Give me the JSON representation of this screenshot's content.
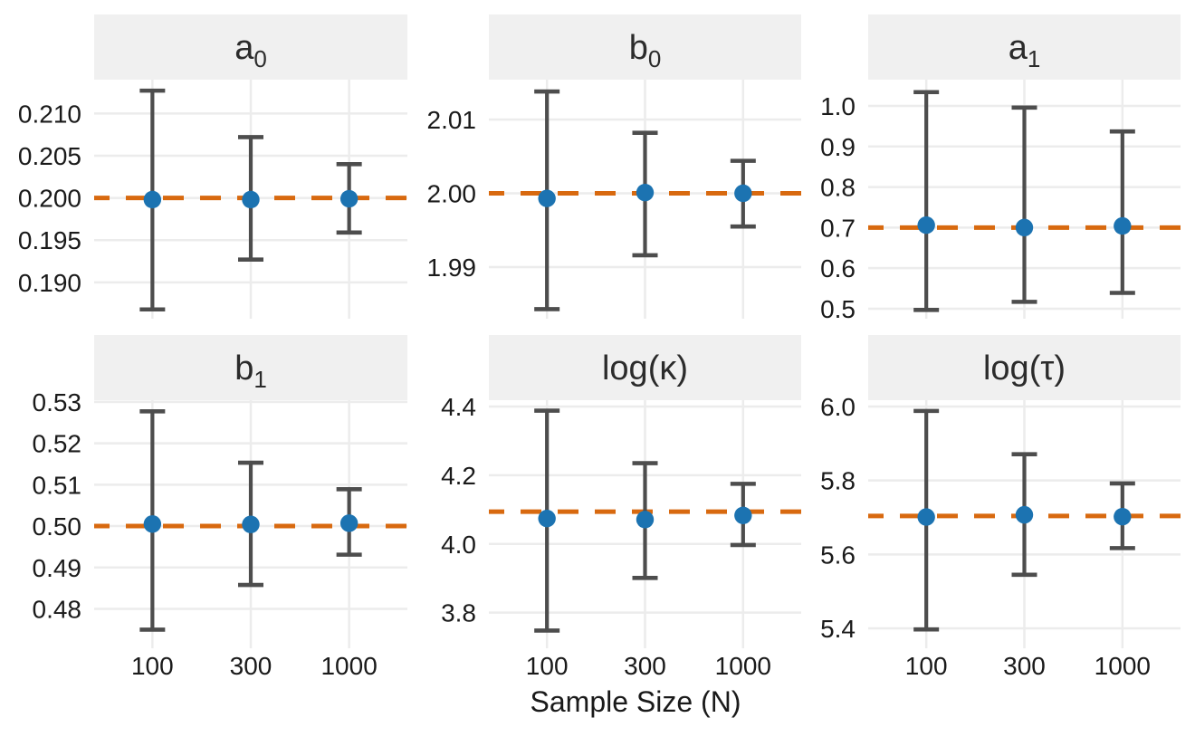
{
  "chart_data": {
    "type": "scatter",
    "subtype": "faceted-point-errorbar",
    "xlabel": "Sample Size (N)",
    "x_categories": [
      "100",
      "300",
      "1000"
    ],
    "legend": "none",
    "grid": "on",
    "facet_layout": {
      "rows": 2,
      "cols": 3
    },
    "style": {
      "point_color": "#1c73b1",
      "ref_line_color": "#d8690f",
      "error_bar_color": "#4d4d4d",
      "gridline_color": "#ececec",
      "strip_bg_color": "#f0f0f0",
      "strip_text_color": "#2b2b2b",
      "axis_text_color": "#1a1a1a",
      "background_color": "#ffffff"
    },
    "facets": [
      {
        "id": "a0",
        "label_main": "a",
        "label_sub": "0",
        "ref_value": 0.2,
        "ylim": [
          0.1857,
          0.214
        ],
        "yticks": [
          {
            "value": 0.19,
            "label": "0.190"
          },
          {
            "value": 0.195,
            "label": "0.195"
          },
          {
            "value": 0.2,
            "label": "0.200"
          },
          {
            "value": 0.205,
            "label": "0.205"
          },
          {
            "value": 0.21,
            "label": "0.210"
          }
        ],
        "points": [
          {
            "x": "100",
            "estimate": 0.1998,
            "lower": 0.1868,
            "upper": 0.2127
          },
          {
            "x": "300",
            "estimate": 0.1998,
            "lower": 0.1927,
            "upper": 0.2072
          },
          {
            "x": "1000",
            "estimate": 0.1999,
            "lower": 0.1959,
            "upper": 0.204
          }
        ]
      },
      {
        "id": "b0",
        "label_main": "b",
        "label_sub": "0",
        "ref_value": 2.0,
        "ylim": [
          1.983,
          2.0154
        ],
        "yticks": [
          {
            "value": 1.99,
            "label": "1.99"
          },
          {
            "value": 2.0,
            "label": "2.00"
          },
          {
            "value": 2.01,
            "label": "2.01"
          }
        ],
        "points": [
          {
            "x": "100",
            "estimate": 1.9993,
            "lower": 1.9843,
            "upper": 2.0138
          },
          {
            "x": "300",
            "estimate": 2.0001,
            "lower": 1.9916,
            "upper": 2.0082
          },
          {
            "x": "1000",
            "estimate": 2.0,
            "lower": 1.9955,
            "upper": 2.0044
          }
        ]
      },
      {
        "id": "a1",
        "label_main": "a",
        "label_sub": "1",
        "ref_value": 0.7,
        "ylim": [
          0.4754,
          1.0647
        ],
        "yticks": [
          {
            "value": 0.5,
            "label": "0.5"
          },
          {
            "value": 0.6,
            "label": "0.6"
          },
          {
            "value": 0.7,
            "label": "0.7"
          },
          {
            "value": 0.8,
            "label": "0.8"
          },
          {
            "value": 0.9,
            "label": "0.9"
          },
          {
            "value": 1.0,
            "label": "1.0"
          }
        ],
        "points": [
          {
            "x": "100",
            "estimate": 0.706,
            "lower": 0.497,
            "upper": 1.034
          },
          {
            "x": "300",
            "estimate": 0.7,
            "lower": 0.517,
            "upper": 0.996
          },
          {
            "x": "1000",
            "estimate": 0.704,
            "lower": 0.539,
            "upper": 0.937
          }
        ]
      },
      {
        "id": "b1",
        "label_main": "b",
        "label_sub": "1",
        "ref_value": 0.5,
        "ylim": [
          0.4705,
          0.5304
        ],
        "yticks": [
          {
            "value": 0.48,
            "label": "0.48"
          },
          {
            "value": 0.49,
            "label": "0.49"
          },
          {
            "value": 0.5,
            "label": "0.50"
          },
          {
            "value": 0.51,
            "label": "0.51"
          },
          {
            "value": 0.52,
            "label": "0.52"
          },
          {
            "value": 0.53,
            "label": "0.53"
          }
        ],
        "points": [
          {
            "x": "100",
            "estimate": 0.5005,
            "lower": 0.475,
            "upper": 0.5277
          },
          {
            "x": "300",
            "estimate": 0.5004,
            "lower": 0.4858,
            "upper": 0.5153
          },
          {
            "x": "1000",
            "estimate": 0.5007,
            "lower": 0.4931,
            "upper": 0.5089
          }
        ]
      },
      {
        "id": "log-kappa",
        "label_main": "log(κ)",
        "label_sub": "",
        "ref_value": 4.094,
        "ylim": [
          3.6964,
          4.4184
        ],
        "yticks": [
          {
            "value": 3.8,
            "label": "3.8"
          },
          {
            "value": 4.0,
            "label": "4.0"
          },
          {
            "value": 4.2,
            "label": "4.2"
          },
          {
            "value": 4.4,
            "label": "4.4"
          }
        ],
        "points": [
          {
            "x": "100",
            "estimate": 4.074,
            "lower": 3.748,
            "upper": 4.388
          },
          {
            "x": "300",
            "estimate": 4.071,
            "lower": 3.901,
            "upper": 4.235
          },
          {
            "x": "1000",
            "estimate": 4.083,
            "lower": 3.997,
            "upper": 4.175
          }
        ]
      },
      {
        "id": "log-tau",
        "label_main": "log(τ)",
        "label_sub": "",
        "ref_value": 5.704,
        "ylim": [
          5.3461,
          6.0171
        ],
        "yticks": [
          {
            "value": 5.4,
            "label": "5.4"
          },
          {
            "value": 5.6,
            "label": "5.6"
          },
          {
            "value": 5.8,
            "label": "5.8"
          },
          {
            "value": 6.0,
            "label": "6.0"
          }
        ],
        "points": [
          {
            "x": "100",
            "estimate": 5.701,
            "lower": 5.397,
            "upper": 5.988
          },
          {
            "x": "300",
            "estimate": 5.707,
            "lower": 5.545,
            "upper": 5.871
          },
          {
            "x": "1000",
            "estimate": 5.702,
            "lower": 5.617,
            "upper": 5.792
          }
        ]
      }
    ]
  }
}
